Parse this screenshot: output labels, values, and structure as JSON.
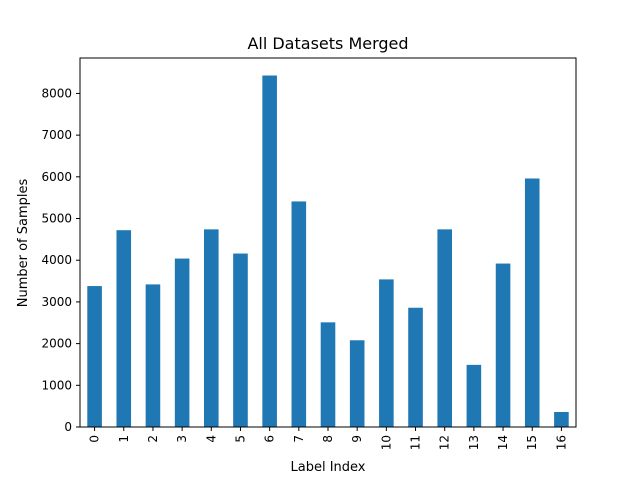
{
  "chart_data": {
    "type": "bar",
    "title": "All Datasets Merged",
    "xlabel": "Label Index",
    "ylabel": "Number of Samples",
    "categories": [
      "0",
      "1",
      "2",
      "3",
      "4",
      "5",
      "6",
      "7",
      "8",
      "9",
      "10",
      "11",
      "12",
      "13",
      "14",
      "15",
      "16"
    ],
    "values": [
      3380,
      4720,
      3420,
      4040,
      4740,
      4160,
      8430,
      5410,
      2510,
      2080,
      3540,
      2860,
      4740,
      1490,
      3920,
      5960,
      360
    ],
    "ylim": [
      0,
      8850
    ],
    "yticks": [
      0,
      1000,
      2000,
      3000,
      4000,
      5000,
      6000,
      7000,
      8000
    ],
    "bar_color": "#1f77b4",
    "grid": false,
    "legend": "none"
  }
}
